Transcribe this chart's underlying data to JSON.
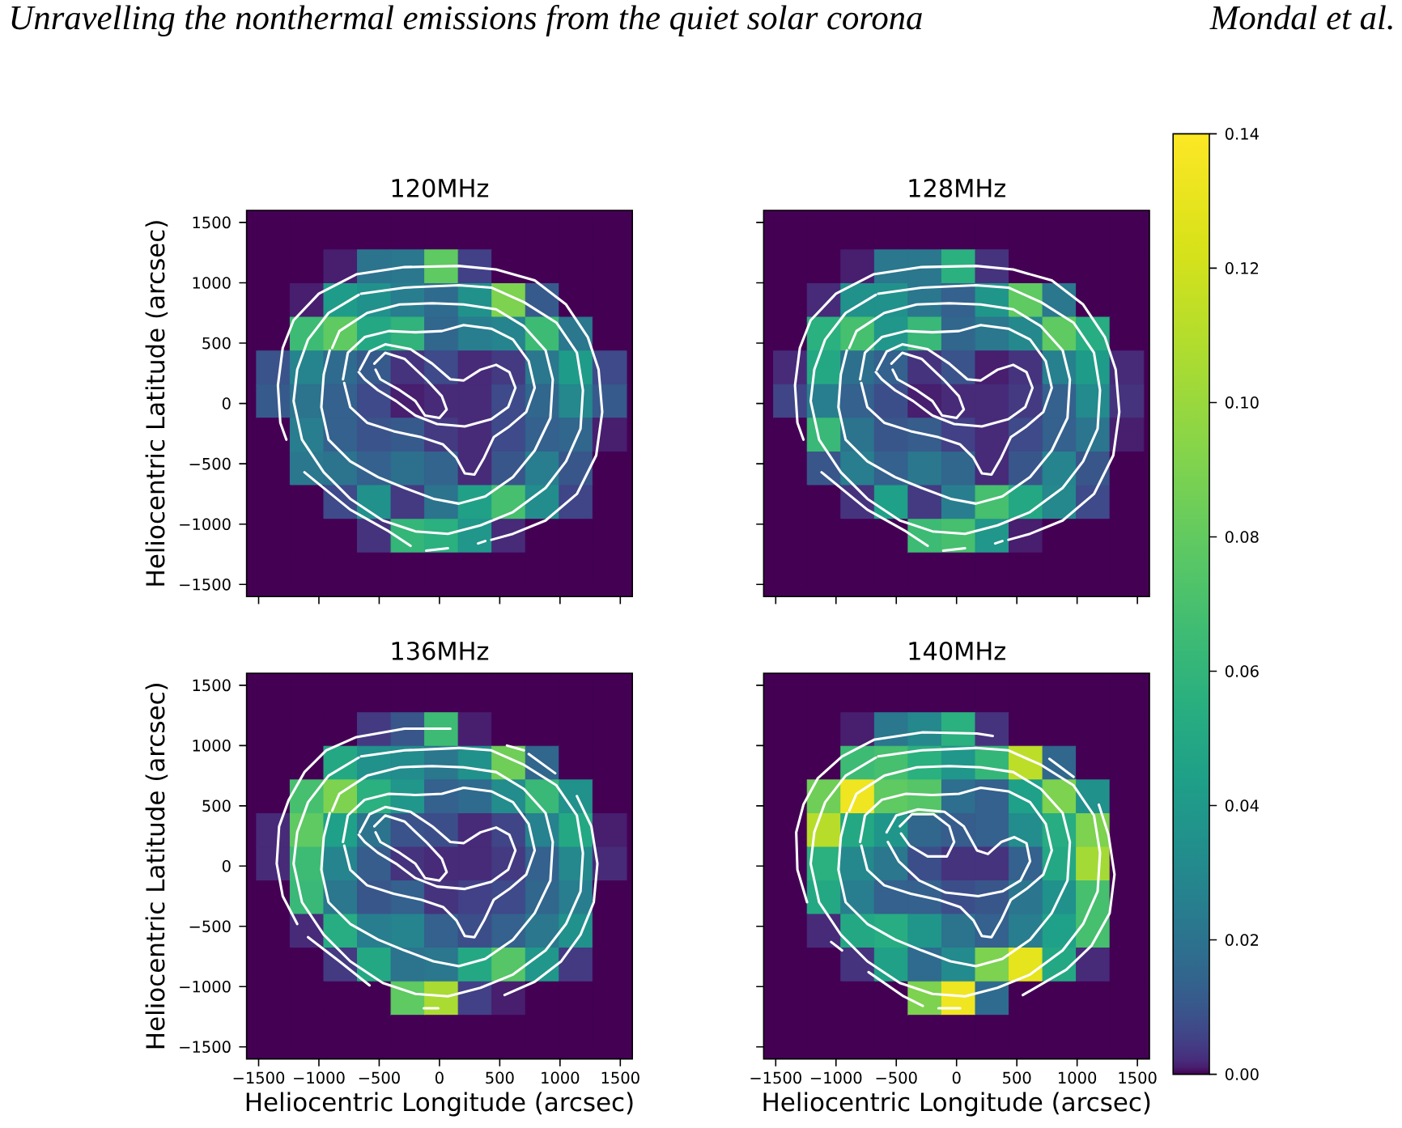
{
  "chart_data": [
    {
      "type": "heatmap",
      "title": "120MHz",
      "ylabel": "Heliocentric Latitude (arcsec)",
      "annotations": [
        "Unravelling the nonthermal emissions from the quiet solar corona",
        "Mondal et al."
      ],
      "x": [
        -1378,
        -1099,
        -820,
        -541,
        -262,
        17,
        296,
        575,
        854,
        1133,
        1412
      ],
      "y": [
        1412,
        1133,
        854,
        575,
        296,
        17,
        -262,
        -541,
        -820,
        -1099,
        -1378
      ],
      "cells": [
        [
          0,
          0,
          0,
          0,
          0,
          0,
          0,
          0,
          0,
          0,
          0
        ],
        [
          0,
          0,
          0.001,
          0.02,
          0.022,
          0.079,
          0.005,
          0,
          0,
          0,
          0
        ],
        [
          0,
          0.001,
          0.042,
          0.035,
          0.025,
          0.017,
          0.035,
          0.09,
          0.011,
          0,
          0
        ],
        [
          0,
          0.065,
          0.079,
          0.05,
          0.059,
          0.015,
          0.025,
          0.028,
          0.065,
          0.022,
          0
        ],
        [
          0.009,
          0.028,
          0.017,
          0.011,
          0.003,
          0.007,
          0.002,
          0.004,
          0.022,
          0.042,
          0.007
        ],
        [
          0.011,
          0.02,
          0.013,
          0.007,
          0.001,
          0.002,
          0.002,
          0.007,
          0.015,
          0.03,
          0.011
        ],
        [
          0,
          0.025,
          0.013,
          0.009,
          0.011,
          0.004,
          0.002,
          0.007,
          0.013,
          0.015,
          0.001
        ],
        [
          0,
          0.022,
          0.02,
          0.013,
          0.019,
          0.014,
          0.002,
          0.01,
          0.025,
          0.01,
          0
        ],
        [
          0,
          0,
          0.007,
          0.035,
          0.004,
          0.02,
          0.045,
          0.069,
          0.032,
          0.006,
          0
        ],
        [
          0,
          0,
          0,
          0.003,
          0.061,
          0.056,
          0.039,
          0.002,
          0,
          0,
          0
        ],
        [
          0,
          0,
          0,
          0,
          0,
          0,
          0,
          0,
          0,
          0,
          0
        ]
      ],
      "clim": [
        0,
        0.14
      ],
      "cticks": [
        {
          "value": 0,
          "label": "0.00"
        },
        0.02
      ],
      "xlim": [
        -1600,
        1600
      ],
      "ylim": [
        -1600,
        1600
      ],
      "xticks": [
        -1500,
        -1000,
        -500,
        0,
        500,
        1000,
        1500
      ],
      "yticks": [
        {
          "value": -1500,
          "label": "−1500"
        },
        {
          "value": -1000,
          "label": "−1000"
        },
        {
          "value": -500,
          "label": "−500"
        },
        0,
        500,
        1000,
        1500
      ],
      "tick_labels": "y",
      "series": [
        {
          "type": "line",
          "color": "#ffffff",
          "x": [
            -1270,
            -1320,
            -1340,
            -1300,
            -1210,
            -1000,
            -690,
            -290,
            160,
            470,
            790,
            1050,
            1230,
            1320,
            1350,
            1300,
            1140,
            880,
            610,
            430,
            410,
            380,
            320,
            200,
            70,
            -110,
            -180,
            -240,
            -420,
            -740,
            -1120
          ],
          "values": [
            -300,
            -160,
            150,
            460,
            690,
            910,
            1070,
            1130,
            1140,
            1110,
            1020,
            820,
            550,
            280,
            -70,
            -430,
            -750,
            -970,
            -1080,
            -1130,
            null,
            -1140,
            -1160,
            null,
            -1200,
            -1220,
            null,
            -1180,
            -1060,
            -880,
            -570
          ]
        },
        {
          "type": "line",
          "color": "#ffffff",
          "x": [
            -650,
            -290,
            160,
            430,
            700,
            970,
            1140,
            1190,
            1170,
            1050,
            880,
            610,
            340,
            70,
            -200,
            -470,
            -740,
            -960,
            -1140,
            -1210,
            -1180,
            -1090,
            -920,
            -670
          ],
          "values": [
            910,
            960,
            980,
            960,
            840,
            670,
            420,
            110,
            -210,
            -480,
            -700,
            -900,
            -1010,
            -1080,
            -1060,
            -970,
            -790,
            -570,
            -300,
            20,
            280,
            530,
            750,
            900
          ]
        },
        {
          "type": "line",
          "color": "#ffffff",
          "x": [
            -890,
            -830,
            -600,
            -330,
            -60,
            200,
            470,
            700,
            880,
            940,
            920,
            790,
            610,
            380,
            160,
            -50,
            -290,
            -510,
            -740,
            -920,
            -980,
            -960,
            -910
          ],
          "values": [
            460,
            600,
            750,
            820,
            830,
            820,
            780,
            640,
            440,
            200,
            -120,
            -390,
            -610,
            -770,
            -830,
            -790,
            -700,
            -610,
            -480,
            -300,
            -30,
            240,
            440
          ]
        },
        {
          "type": "line",
          "color": "#ffffff",
          "x": [
            -800,
            -760,
            -620,
            -420,
            -200,
            20,
            200,
            430,
            610,
            740,
            790,
            720,
            580,
            450,
            370,
            290,
            210,
            140,
            30,
            -150,
            -380,
            -600,
            -740,
            -790
          ],
          "values": [
            200,
            420,
            550,
            600,
            590,
            600,
            650,
            620,
            530,
            350,
            130,
            -70,
            -190,
            -280,
            -450,
            -590,
            -580,
            -450,
            -340,
            -280,
            -230,
            -160,
            -30,
            170
          ]
        },
        {
          "type": "line",
          "color": "#ffffff",
          "x": [
            -660,
            -580,
            -450,
            -240,
            -60,
            90,
            200,
            340,
            470,
            580,
            630,
            570,
            430,
            210,
            -20,
            -200,
            -360,
            -510,
            -620,
            -670
          ],
          "values": [
            280,
            430,
            490,
            450,
            330,
            200,
            190,
            280,
            320,
            260,
            130,
            -30,
            -130,
            -190,
            -170,
            -100,
            20,
            110,
            200,
            260
          ]
        },
        {
          "type": "line",
          "color": "#ffffff",
          "x": [
            -540,
            -450,
            -290,
            -110,
            20,
            60,
            0,
            -120,
            -200,
            -330,
            -490,
            -530
          ],
          "values": [
            330,
            420,
            370,
            200,
            60,
            -50,
            -120,
            -100,
            20,
            110,
            200,
            280
          ]
        }
      ]
    },
    {
      "type": "heatmap",
      "title": "128MHz",
      "x": [
        -1378,
        -1099,
        -820,
        -541,
        -262,
        17,
        296,
        575,
        854,
        1133,
        1412
      ],
      "y": [
        1412,
        1133,
        854,
        575,
        296,
        17,
        -262,
        -541,
        -820,
        -1099,
        -1378
      ],
      "cells": [
        [
          0,
          0,
          0,
          0,
          0,
          0,
          0,
          0,
          0,
          0,
          0
        ],
        [
          0,
          0,
          0.001,
          0.022,
          0.022,
          0.056,
          0.003,
          0,
          0,
          0,
          0
        ],
        [
          0,
          0.002,
          0.035,
          0.035,
          0.022,
          0.013,
          0.038,
          0.079,
          0.022,
          0,
          0
        ],
        [
          0,
          0.056,
          0.069,
          0.039,
          0.063,
          0.015,
          0.022,
          0.03,
          0.079,
          0.054,
          0
        ],
        [
          0.002,
          0.05,
          0.019,
          0.013,
          0.003,
          0.009,
          0.001,
          0.003,
          0.026,
          0.042,
          0.002
        ],
        [
          0.006,
          0.025,
          0.013,
          0.008,
          0.001,
          0.002,
          0.002,
          0.004,
          0.013,
          0.031,
          0.003
        ],
        [
          0,
          0.063,
          0.02,
          0.01,
          0.012,
          0.005,
          0.002,
          0.007,
          0.013,
          0.021,
          0.001
        ],
        [
          0,
          0.01,
          0.025,
          0.013,
          0.022,
          0.015,
          0.002,
          0.01,
          0.028,
          0.01,
          0
        ],
        [
          0,
          0,
          0.003,
          0.044,
          0.004,
          0.025,
          0.069,
          0.05,
          0.03,
          0.007,
          0
        ],
        [
          0,
          0,
          0,
          0,
          0.065,
          0.069,
          0.039,
          0.001,
          0,
          0,
          0
        ],
        [
          0,
          0,
          0,
          0,
          0,
          0,
          0,
          0,
          0,
          0,
          0
        ]
      ],
      "clim": [
        0,
        0.14
      ],
      "cticks": [
        0.04,
        0.06
      ],
      "xlim": [
        -1600,
        1600
      ],
      "ylim": [
        -1600,
        1600
      ],
      "xticks": [
        -1500,
        -1000,
        -500,
        0,
        500,
        1000,
        1500
      ],
      "yticks": [
        -1500,
        -1000,
        -500,
        0,
        500,
        1000,
        1500
      ],
      "tick_labels": false,
      "series": [
        {
          "type": "line",
          "color": "#ffffff",
          "x": [
            -1270,
            -1320,
            -1340,
            -1300,
            -1210,
            -1000,
            -690,
            -290,
            160,
            470,
            790,
            1050,
            1230,
            1320,
            1350,
            1300,
            1140,
            880,
            610,
            430,
            410,
            380,
            320,
            200,
            70,
            -110,
            -180,
            -240,
            -420,
            -740,
            -1120
          ],
          "values": [
            -300,
            -160,
            150,
            460,
            690,
            910,
            1070,
            1130,
            1140,
            1110,
            1020,
            820,
            550,
            280,
            -70,
            -430,
            -750,
            -970,
            -1080,
            -1130,
            null,
            -1140,
            -1160,
            null,
            -1200,
            -1220,
            null,
            -1180,
            -1060,
            -880,
            -570
          ]
        },
        {
          "type": "line",
          "color": "#ffffff",
          "x": [
            -650,
            -290,
            160,
            430,
            700,
            970,
            1140,
            1190,
            1170,
            1050,
            880,
            610,
            340,
            70,
            -200,
            -470,
            -740,
            -960,
            -1140,
            -1210,
            -1180,
            -1090,
            -920,
            -670
          ],
          "values": [
            910,
            960,
            980,
            960,
            840,
            670,
            420,
            110,
            -210,
            -480,
            -700,
            -900,
            -1010,
            -1080,
            -1060,
            -970,
            -790,
            -570,
            -300,
            20,
            280,
            530,
            750,
            900
          ]
        },
        {
          "type": "line",
          "color": "#ffffff",
          "x": [
            -890,
            -830,
            -600,
            -330,
            -60,
            200,
            470,
            700,
            880,
            940,
            920,
            790,
            610,
            380,
            160,
            -50,
            -290,
            -510,
            -740,
            -920,
            -980,
            -960,
            -910
          ],
          "values": [
            460,
            600,
            750,
            820,
            830,
            820,
            780,
            640,
            440,
            200,
            -120,
            -390,
            -610,
            -770,
            -830,
            -790,
            -700,
            -610,
            -480,
            -300,
            -30,
            240,
            440
          ]
        },
        {
          "type": "line",
          "color": "#ffffff",
          "x": [
            -800,
            -760,
            -620,
            -420,
            -200,
            20,
            200,
            430,
            610,
            740,
            790,
            720,
            580,
            450,
            370,
            290,
            210,
            140,
            30,
            -150,
            -380,
            -600,
            -740,
            -790
          ],
          "values": [
            200,
            420,
            550,
            600,
            590,
            600,
            650,
            620,
            530,
            350,
            130,
            -70,
            -190,
            -280,
            -450,
            -590,
            -580,
            -450,
            -340,
            -280,
            -230,
            -160,
            -30,
            170
          ]
        },
        {
          "type": "line",
          "color": "#ffffff",
          "x": [
            -660,
            -580,
            -450,
            -240,
            -60,
            90,
            200,
            340,
            470,
            580,
            630,
            570,
            430,
            210,
            -20,
            -200,
            -360,
            -510,
            -620,
            -670
          ],
          "values": [
            280,
            430,
            490,
            450,
            330,
            200,
            190,
            280,
            320,
            260,
            130,
            -30,
            -130,
            -190,
            -170,
            -100,
            20,
            110,
            200,
            260
          ]
        },
        {
          "type": "line",
          "color": "#ffffff",
          "x": [
            -540,
            -450,
            -290,
            -110,
            20,
            60,
            0,
            -120,
            -200,
            -330,
            -490,
            -530
          ],
          "values": [
            330,
            420,
            370,
            200,
            60,
            -50,
            -120,
            -100,
            20,
            110,
            200,
            280
          ]
        }
      ]
    },
    {
      "type": "heatmap",
      "title": "136MHz",
      "xlabel": "Heliocentric Longitude (arcsec)",
      "ylabel": "Heliocentric Latitude (arcsec)",
      "x": [
        -1378,
        -1099,
        -820,
        -541,
        -262,
        17,
        296,
        575,
        854,
        1133,
        1412
      ],
      "y": [
        1412,
        1133,
        854,
        575,
        296,
        17,
        -262,
        -541,
        -820,
        -1099,
        -1378
      ],
      "cells": [
        [
          0,
          0,
          0,
          0,
          0,
          0,
          0,
          0,
          0,
          0,
          0
        ],
        [
          0,
          0,
          0,
          0.004,
          0.01,
          0.065,
          0.001,
          0,
          0,
          0,
          0
        ],
        [
          0,
          0,
          0.05,
          0.035,
          0.032,
          0.022,
          0.035,
          0.085,
          0.015,
          0,
          0
        ],
        [
          0,
          0.069,
          0.09,
          0.056,
          0.039,
          0.013,
          0.017,
          0.032,
          0.063,
          0.035,
          0
        ],
        [
          0.002,
          0.079,
          0.044,
          0.02,
          0.009,
          0.008,
          0.002,
          0.006,
          0.027,
          0.05,
          0.001
        ],
        [
          0.002,
          0.065,
          0.028,
          0.012,
          0.003,
          0.002,
          0.002,
          0.004,
          0.013,
          0.03,
          0.002
        ],
        [
          0,
          0.063,
          0.022,
          0.01,
          0.013,
          0.003,
          0.005,
          0.007,
          0.015,
          0.025,
          0
        ],
        [
          0,
          0.002,
          0.054,
          0.025,
          0.028,
          0.013,
          0.008,
          0.013,
          0.022,
          0.035,
          0
        ],
        [
          0,
          0,
          0.004,
          0.05,
          0.02,
          0.022,
          0.05,
          0.075,
          0.039,
          0.004,
          0
        ],
        [
          0,
          0,
          0,
          0,
          0.079,
          0.106,
          0.005,
          0.001,
          0,
          0,
          0
        ],
        [
          0,
          0,
          0,
          0,
          0,
          0,
          0,
          0,
          0,
          0,
          0
        ]
      ],
      "clim": [
        0,
        0.14
      ],
      "cticks": [
        0.08,
        {
          "value": 0.1,
          "label": "0.10"
        }
      ],
      "xlim": [
        -1600,
        1600
      ],
      "ylim": [
        -1600,
        1600
      ],
      "xticks": [
        {
          "value": -1500,
          "label": "−1500"
        },
        {
          "value": -1000,
          "label": "−1000"
        },
        {
          "value": -500,
          "label": "−500"
        },
        0,
        500,
        1000,
        1500
      ],
      "yticks": [
        {
          "value": -1500,
          "label": "−1500"
        },
        {
          "value": -1000,
          "label": "−1000"
        },
        {
          "value": -500,
          "label": "−500"
        },
        0,
        500,
        1000,
        1500
      ],
      "series": [
        {
          "type": "line",
          "color": "#ffffff",
          "x": [
            -1180,
            -1300,
            -1350,
            -1330,
            -1250,
            -1120,
            -940,
            -690,
            -290,
            90,
            300,
            560,
            700,
            720,
            740,
            960,
            1050,
            1140,
            1260,
            1310,
            1280,
            1170,
            1010,
            790,
            540,
            200,
            -130,
            -10,
            -500,
            -1090,
            -830,
            -580
          ],
          "values": [
            -480,
            -250,
            20,
            330,
            550,
            780,
            960,
            1070,
            1140,
            1140,
            null,
            1000,
            960,
            null,
            930,
            770,
            null,
            580,
            330,
            20,
            -300,
            -570,
            -790,
            -960,
            -1070,
            null,
            -1180,
            -1180,
            null,
            -590,
            -790,
            -990
          ]
        },
        {
          "type": "line",
          "color": "#ffffff",
          "x": [
            -650,
            -290,
            160,
            430,
            700,
            970,
            1140,
            1190,
            1170,
            1050,
            880,
            610,
            340,
            70,
            -200,
            -470,
            -740,
            -960,
            -1140,
            -1210,
            -1180,
            -1090,
            -920,
            -670
          ],
          "values": [
            910,
            960,
            980,
            960,
            840,
            670,
            420,
            110,
            -210,
            -480,
            -700,
            -900,
            -1010,
            -1080,
            -1060,
            -970,
            -790,
            -570,
            -300,
            20,
            280,
            530,
            750,
            900
          ]
        },
        {
          "type": "line",
          "color": "#ffffff",
          "x": [
            -890,
            -830,
            -600,
            -330,
            -60,
            200,
            470,
            700,
            880,
            940,
            920,
            790,
            610,
            380,
            160,
            -50,
            -290,
            -510,
            -740,
            -920,
            -980,
            -960,
            -910
          ],
          "values": [
            460,
            600,
            750,
            820,
            830,
            820,
            780,
            640,
            440,
            200,
            -120,
            -390,
            -610,
            -770,
            -830,
            -790,
            -700,
            -610,
            -480,
            -300,
            -30,
            240,
            440
          ]
        },
        {
          "type": "line",
          "color": "#ffffff",
          "x": [
            -800,
            -760,
            -620,
            -420,
            -200,
            20,
            200,
            430,
            610,
            740,
            790,
            720,
            580,
            450,
            370,
            290,
            210,
            140,
            30,
            -150,
            -380,
            -600,
            -740,
            -790
          ],
          "values": [
            200,
            420,
            550,
            600,
            590,
            600,
            650,
            620,
            530,
            350,
            130,
            -70,
            -190,
            -280,
            -450,
            -590,
            -580,
            -450,
            -340,
            -280,
            -230,
            -160,
            -30,
            170
          ]
        },
        {
          "type": "line",
          "color": "#ffffff",
          "x": [
            -660,
            -580,
            -450,
            -240,
            -60,
            90,
            200,
            340,
            470,
            580,
            630,
            570,
            430,
            210,
            -20,
            -200,
            -360,
            -510,
            -620,
            -670
          ],
          "values": [
            280,
            430,
            490,
            450,
            330,
            200,
            190,
            280,
            320,
            260,
            130,
            -30,
            -130,
            -190,
            -170,
            -100,
            20,
            110,
            200,
            260
          ]
        },
        {
          "type": "line",
          "color": "#ffffff",
          "x": [
            -540,
            -450,
            -290,
            -110,
            20,
            60,
            0,
            -120,
            -200,
            -330,
            -490,
            -530
          ],
          "values": [
            330,
            420,
            370,
            200,
            60,
            -50,
            -120,
            -100,
            20,
            110,
            200,
            280
          ]
        }
      ]
    },
    {
      "type": "heatmap",
      "title": "140MHz",
      "xlabel": "Heliocentric Longitude (arcsec)",
      "x": [
        -1378,
        -1099,
        -820,
        -541,
        -262,
        17,
        296,
        575,
        854,
        1133,
        1412
      ],
      "y": [
        1412,
        1133,
        854,
        575,
        296,
        17,
        -262,
        -541,
        -820,
        -1099,
        -1378
      ],
      "cells": [
        [
          0,
          0,
          0,
          0,
          0,
          0,
          0,
          0,
          0,
          0,
          0
        ],
        [
          0,
          0,
          0.001,
          0.022,
          0.03,
          0.056,
          0.003,
          0,
          0,
          0,
          0
        ],
        [
          0,
          0,
          0.065,
          0.069,
          0.056,
          0.039,
          0.061,
          0.113,
          0.015,
          0,
          0
        ],
        [
          0,
          0.085,
          0.134,
          0.079,
          0.075,
          0.018,
          0.013,
          0.044,
          0.09,
          0.035,
          0
        ],
        [
          0,
          0.111,
          0.05,
          0.038,
          0.015,
          0.012,
          0.013,
          0.032,
          0.054,
          0.09,
          0
        ],
        [
          0,
          0.056,
          0.03,
          0.022,
          0.008,
          0.003,
          0.003,
          0.013,
          0.05,
          0.104,
          0
        ],
        [
          0,
          0.05,
          0.025,
          0.013,
          0.013,
          0.008,
          0.01,
          0.021,
          0.035,
          0.069,
          0
        ],
        [
          0,
          0.002,
          0.05,
          0.054,
          0.038,
          0.02,
          0.013,
          0.025,
          0.044,
          0.069,
          0
        ],
        [
          0,
          0,
          0.003,
          0.045,
          0.017,
          0.031,
          0.09,
          0.129,
          0.05,
          0.002,
          0
        ],
        [
          0,
          0,
          0,
          0,
          0.09,
          0.134,
          0.017,
          0,
          0,
          0,
          0
        ],
        [
          0,
          0,
          0,
          0,
          0,
          0,
          0,
          0,
          0,
          0,
          0
        ]
      ],
      "clim": [
        0,
        0.14
      ],
      "cticks": [
        0.12,
        0.14
      ],
      "xlim": [
        -1600,
        1600
      ],
      "ylim": [
        -1600,
        1600
      ],
      "xticks": [
        {
          "value": -1500,
          "label": "−1500"
        },
        {
          "value": -1000,
          "label": "−1000"
        },
        {
          "value": -500,
          "label": "−500"
        },
        0,
        500,
        1000,
        1500
      ],
      "yticks": [
        -1500,
        -1000,
        -500,
        0,
        500,
        1000,
        1500
      ],
      "tick_labels": "x",
      "series": [
        {
          "type": "line",
          "color": "#ffffff",
          "x": [
            -1240,
            -1320,
            -1330,
            -1270,
            -1150,
            -950,
            -680,
            -280,
            170,
            300,
            540,
            770,
            970,
            1070,
            1180,
            1260,
            1310,
            1270,
            1120,
            910,
            550,
            290,
            30,
            -150,
            -210,
            -280,
            -440,
            -730,
            -840,
            -950,
            -1040
          ],
          "values": [
            -300,
            -30,
            280,
            510,
            730,
            910,
            1050,
            1110,
            1100,
            1080,
            null,
            890,
            740,
            null,
            510,
            260,
            -70,
            -390,
            -660,
            -860,
            -1070,
            null,
            -1180,
            -1180,
            null,
            -1160,
            -1080,
            -880,
            null,
            -700,
            -630
          ]
        },
        {
          "type": "line",
          "color": "#ffffff",
          "x": [
            -650,
            -290,
            160,
            430,
            700,
            970,
            1140,
            1190,
            1170,
            1050,
            880,
            610,
            340,
            70,
            -200,
            -470,
            -740,
            -960,
            -1140,
            -1210,
            -1180,
            -1090,
            -920,
            -670
          ],
          "values": [
            910,
            960,
            980,
            960,
            840,
            670,
            420,
            110,
            -210,
            -480,
            -700,
            -900,
            -1010,
            -1080,
            -1060,
            -970,
            -790,
            -570,
            -300,
            20,
            280,
            530,
            750,
            900
          ]
        },
        {
          "type": "line",
          "color": "#ffffff",
          "x": [
            -890,
            -830,
            -600,
            -330,
            -60,
            200,
            470,
            700,
            880,
            940,
            920,
            790,
            610,
            380,
            160,
            -50,
            -290,
            -510,
            -740,
            -920,
            -980,
            -960,
            -910
          ],
          "values": [
            460,
            600,
            750,
            820,
            830,
            820,
            780,
            640,
            440,
            200,
            -120,
            -390,
            -610,
            -770,
            -830,
            -790,
            -700,
            -610,
            -480,
            -300,
            -30,
            240,
            440
          ]
        },
        {
          "type": "line",
          "color": "#ffffff",
          "x": [
            -800,
            -760,
            -620,
            -420,
            -200,
            20,
            200,
            430,
            610,
            740,
            790,
            720,
            580,
            450,
            370,
            290,
            210,
            140,
            30,
            -150,
            -380,
            -600,
            -740,
            -790
          ],
          "values": [
            200,
            420,
            550,
            600,
            590,
            600,
            650,
            620,
            530,
            350,
            130,
            -70,
            -190,
            -280,
            -450,
            -590,
            -580,
            -450,
            -340,
            -280,
            -230,
            -160,
            -30,
            170
          ]
        },
        {
          "type": "line",
          "color": "#ffffff",
          "x": [
            -580,
            -500,
            -320,
            -100,
            60,
            170,
            260,
            370,
            480,
            580,
            610,
            530,
            380,
            180,
            -90,
            -310,
            -480,
            -570
          ],
          "values": [
            280,
            420,
            470,
            450,
            330,
            130,
            100,
            200,
            240,
            190,
            40,
            -120,
            -210,
            -250,
            -220,
            -120,
            40,
            200
          ]
        },
        {
          "type": "line",
          "color": "#ffffff",
          "x": [
            -470,
            -370,
            -190,
            -60,
            -20,
            -80,
            -240,
            -390,
            -460
          ],
          "values": [
            330,
            430,
            430,
            330,
            200,
            80,
            80,
            170,
            270
          ]
        }
      ]
    }
  ]
}
